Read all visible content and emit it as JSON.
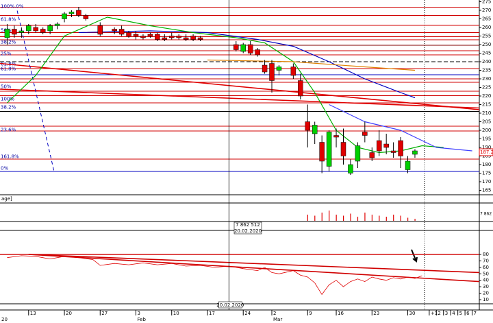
{
  "chart_data": {
    "type": "candlestick",
    "x": [
      0,
      1,
      2,
      3,
      4,
      5,
      6,
      7,
      8,
      9,
      10,
      11,
      13,
      15,
      16,
      17,
      18,
      19,
      20,
      21,
      22,
      23,
      24,
      25,
      26,
      27,
      32,
      33,
      34,
      35,
      36,
      37,
      38,
      40,
      41,
      42,
      43,
      44,
      45,
      46,
      47,
      48,
      49,
      50,
      51,
      52,
      53,
      54,
      55,
      56,
      57
    ],
    "open": [
      254,
      259,
      257,
      258,
      260,
      259,
      258,
      261,
      265,
      268,
      270,
      267,
      261,
      259,
      259,
      257,
      256,
      255,
      256,
      256,
      254,
      255,
      255,
      254,
      255,
      254,
      250,
      246,
      250,
      247,
      238,
      239,
      235,
      237,
      229,
      205,
      198,
      193,
      179,
      197,
      193,
      175,
      182,
      199,
      187,
      194,
      192,
      188,
      194,
      177,
      186
    ],
    "high": [
      262,
      261,
      260,
      262,
      262,
      260,
      262,
      263,
      269,
      270,
      272,
      268,
      263,
      260,
      261,
      258,
      258,
      256,
      257,
      257,
      256,
      257,
      256,
      256,
      256,
      255,
      252,
      251,
      252,
      248,
      241,
      241,
      238,
      239,
      233,
      215,
      205,
      197,
      200,
      201,
      201,
      183,
      193,
      205,
      190,
      200,
      198,
      193,
      196,
      185,
      189
    ],
    "low": [
      250,
      254,
      254,
      256,
      257,
      256,
      256,
      259,
      263,
      266,
      266,
      264,
      255,
      256,
      255,
      254,
      253,
      253,
      254,
      252,
      252,
      253,
      253,
      252,
      252,
      252,
      246,
      245,
      244,
      243,
      233,
      222,
      232,
      230,
      218,
      190,
      192,
      175,
      176,
      190,
      180,
      174,
      178,
      193,
      182,
      185,
      186,
      184,
      178,
      175,
      184
    ],
    "close": [
      259,
      256,
      258,
      261,
      258,
      257,
      261,
      262,
      268,
      269,
      267,
      265,
      256,
      258,
      256,
      255,
      255,
      254,
      255,
      253,
      253,
      254,
      254,
      253,
      253,
      253,
      247,
      250,
      245,
      244,
      234,
      229,
      237,
      232,
      220,
      200,
      203,
      182,
      199,
      196,
      185,
      180,
      191,
      197,
      184,
      188,
      190,
      187,
      185,
      182,
      188
    ],
    "up_color": "#00d000",
    "down_color": "#e00000",
    "xlim": [
      -1,
      66
    ],
    "ylim": [
      164,
      276
    ],
    "yticks": [
      165,
      170,
      175,
      180,
      185,
      190,
      195,
      200,
      205,
      210,
      215,
      220,
      225,
      230,
      235,
      240,
      245,
      250,
      255,
      260,
      265,
      270,
      275
    ],
    "xticks": [
      {
        "value": 3,
        "label": "13"
      },
      {
        "value": 8,
        "label": "20"
      },
      {
        "value": 13,
        "label": "27"
      },
      {
        "value": 18,
        "label": "3"
      },
      {
        "value": 23,
        "label": "10"
      },
      {
        "value": 28,
        "label": "17"
      },
      {
        "value": 33,
        "label": "24"
      },
      {
        "value": 37,
        "label": "2"
      },
      {
        "value": 42,
        "label": "9"
      },
      {
        "value": 46,
        "label": "16"
      },
      {
        "value": 51,
        "label": "23"
      },
      {
        "value": 56,
        "label": "30"
      },
      {
        "value": 59,
        "label": "+1"
      },
      {
        "value": 60,
        "label": "2"
      },
      {
        "value": 61,
        "label": "3"
      },
      {
        "value": 62,
        "label": "4"
      },
      {
        "value": 63,
        "label": "5"
      },
      {
        "value": 64,
        "label": "6"
      },
      {
        "value": 65,
        "label": "7"
      }
    ],
    "month_labels": [
      {
        "value": -1,
        "label": "20"
      },
      {
        "value": 18,
        "label": "Feb"
      },
      {
        "value": 37,
        "label": "Mar"
      }
    ],
    "levels": [
      {
        "value": 271.8,
        "color": "#d00000"
      },
      {
        "value": 267,
        "color": "#d00000"
      },
      {
        "value": 261.2,
        "color": "#d00000"
      },
      {
        "value": 257,
        "color": "#d00000"
      },
      {
        "value": 254.6,
        "color": "#d00000"
      },
      {
        "value": 252.8,
        "color": "#d00000"
      },
      {
        "value": 249.6,
        "color": "#800000"
      },
      {
        "value": 246.4,
        "color": "#d00000"
      },
      {
        "value": 244,
        "color": "#d00000"
      },
      {
        "value": 240,
        "color": "#000000",
        "dashed": true
      },
      {
        "value": 236,
        "color": "#d00000"
      },
      {
        "value": 232.4,
        "color": "#0000c0"
      },
      {
        "value": 230,
        "color": "#d00000"
      },
      {
        "value": 228,
        "color": "#d00000"
      },
      {
        "value": 222.8,
        "color": "#d00000"
      },
      {
        "value": 220.2,
        "color": "#d00000"
      },
      {
        "value": 216,
        "color": "#d00000"
      },
      {
        "value": 211,
        "color": "#000000"
      },
      {
        "value": 202.4,
        "color": "#d00000"
      },
      {
        "value": 199.6,
        "color": "#d00000"
      },
      {
        "value": 183.2,
        "color": "#d00000"
      },
      {
        "value": 176,
        "color": "#0000c0"
      }
    ],
    "fib_labels": [
      {
        "value": 270.6,
        "label": "100%.0%"
      },
      {
        "value": 263,
        "label": "61.8%"
      },
      {
        "value": 256.6,
        "label": "50%"
      },
      {
        "value": 249.8,
        "label": "38.2%"
      },
      {
        "value": 243,
        "label": "25%"
      },
      {
        "value": 237,
        "label": "61.8%"
      },
      {
        "value": 234.2,
        "label": "61.8%"
      },
      {
        "value": 223.8,
        "label": "50%"
      },
      {
        "value": 216.6,
        "label": "100%"
      },
      {
        "value": 211.8,
        "label": "38.2%"
      },
      {
        "value": 198.6,
        "label": "23.6%"
      },
      {
        "value": 183,
        "label": "161.8%"
      },
      {
        "value": 176.2,
        "label": "0%"
      }
    ],
    "trendlines": [
      {
        "x": [
          -1,
          66
        ],
        "values": [
          239,
          212
        ],
        "color": "#e00000"
      },
      {
        "x": [
          -1,
          66
        ],
        "values": [
          224,
          213
        ],
        "color": "#e00000"
      },
      {
        "x": [
          1.4,
          6.6
        ],
        "values": [
          269.8,
          175.2
        ],
        "color": "#0000c0",
        "dashed": true
      }
    ],
    "overlays": [
      {
        "color": "#0000c0",
        "x": [
          10,
          20,
          28,
          35,
          40,
          45,
          50,
          55,
          57
        ],
        "values": [
          257,
          258,
          257,
          253,
          249,
          240,
          230,
          222,
          219
        ]
      },
      {
        "color": "#00b000",
        "x": [
          0,
          4,
          8,
          14,
          20,
          26,
          32,
          36,
          40,
          43,
          46,
          49,
          52,
          55,
          58,
          61
        ],
        "values": [
          216,
          232,
          255,
          266,
          261,
          257,
          254,
          251,
          240,
          222,
          200,
          190,
          187,
          188,
          191,
          190
        ]
      },
      {
        "color": "#e08000",
        "x": [
          28,
          40,
          50,
          57
        ],
        "values": [
          241,
          240,
          237,
          235
        ]
      },
      {
        "color": "#4040ff",
        "x": [
          45,
          50,
          55,
          60,
          65
        ],
        "values": [
          215,
          205,
          200,
          190,
          188
        ]
      }
    ],
    "last_price": 187.2,
    "volume": {
      "label": "age]",
      "color": "#e00000",
      "ylim": [
        0,
        8000000
      ],
      "x": [
        42,
        43,
        44,
        45,
        46,
        47,
        48,
        49,
        50,
        51,
        52,
        53,
        54,
        55,
        56,
        57
      ],
      "values": [
        3000000,
        2500000,
        4000000,
        5000000,
        3000000,
        2500000,
        3500000,
        2000000,
        4000000,
        3000000,
        2500000,
        2000000,
        3000000,
        2500000,
        1500000,
        1000000
      ]
    },
    "indicator": {
      "color": "#e00000",
      "ylim": [
        5,
        85
      ],
      "yticks": [
        10,
        20,
        30,
        40,
        50,
        60,
        70,
        80
      ],
      "x": [
        0,
        2,
        4,
        6,
        8,
        10,
        12,
        13,
        15,
        17,
        19,
        21,
        23,
        25,
        27,
        29,
        31,
        33,
        35,
        36,
        37,
        38,
        40,
        41,
        42,
        43,
        44,
        45,
        46,
        47,
        48,
        49,
        50,
        51,
        52,
        53,
        54,
        55,
        56,
        57,
        58
      ],
      "values": [
        75,
        78,
        77,
        73,
        77,
        75,
        72,
        63,
        66,
        64,
        67,
        64,
        66,
        62,
        63,
        60,
        62,
        58,
        55,
        60,
        52,
        50,
        55,
        48,
        45,
        36,
        18,
        33,
        40,
        30,
        38,
        42,
        38,
        45,
        42,
        40,
        44,
        42,
        45,
        43,
        47
      ],
      "levels": [
        80
      ],
      "trendlines": [
        {
          "x": [
            3,
            66
          ],
          "values": [
            80,
            52
          ]
        },
        {
          "x": [
            3,
            66
          ],
          "values": [
            80,
            38
          ]
        }
      ]
    },
    "crosshair": {
      "x": 31,
      "date": "20.02.2020",
      "value_label": "7 862 512"
    }
  }
}
